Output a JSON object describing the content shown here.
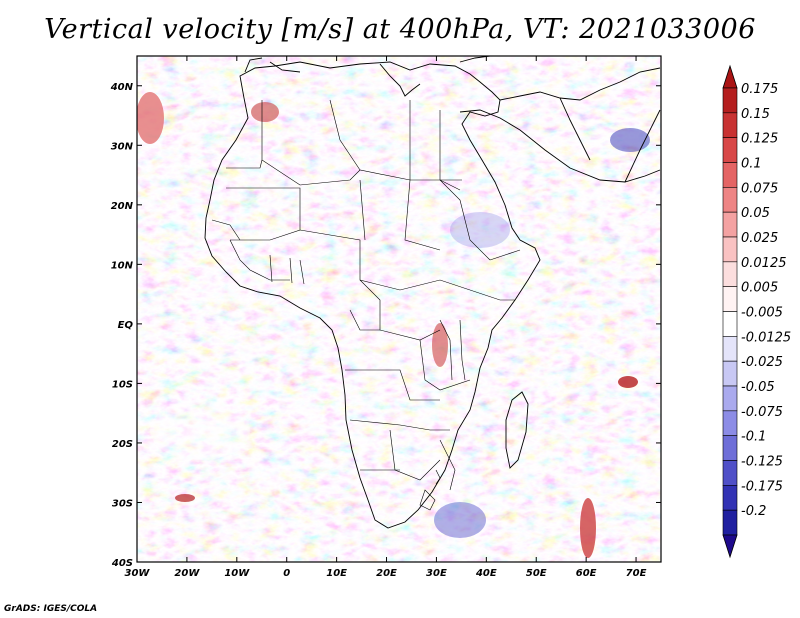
{
  "title": "Vertical velocity [m/s] at 400hPa, VT: 2021033006",
  "credit": "GrADS: IGES/COLA",
  "map": {
    "lon_range": [
      -30,
      75
    ],
    "lat_range": [
      -40,
      45
    ],
    "lon_ticks": [
      {
        "value": -30,
        "label": "30W"
      },
      {
        "value": -20,
        "label": "20W"
      },
      {
        "value": -10,
        "label": "10W"
      },
      {
        "value": 0,
        "label": "0"
      },
      {
        "value": 10,
        "label": "10E"
      },
      {
        "value": 20,
        "label": "20E"
      },
      {
        "value": 30,
        "label": "30E"
      },
      {
        "value": 40,
        "label": "40E"
      },
      {
        "value": 50,
        "label": "50E"
      },
      {
        "value": 60,
        "label": "60E"
      },
      {
        "value": 70,
        "label": "70E"
      }
    ],
    "lat_ticks": [
      {
        "value": 40,
        "label": "40N"
      },
      {
        "value": 30,
        "label": "30N"
      },
      {
        "value": 20,
        "label": "20N"
      },
      {
        "value": 10,
        "label": "10N"
      },
      {
        "value": 0,
        "label": "EQ"
      },
      {
        "value": -10,
        "label": "10S"
      },
      {
        "value": -20,
        "label": "20S"
      },
      {
        "value": -30,
        "label": "30S"
      },
      {
        "value": -40,
        "label": "40S"
      }
    ]
  },
  "colorbar": {
    "items": [
      {
        "label": "0.175",
        "color": "#b41e1e"
      },
      {
        "label": "0.15",
        "color": "#c83232"
      },
      {
        "label": "0.125",
        "color": "#d84848"
      },
      {
        "label": "0.1",
        "color": "#e46464"
      },
      {
        "label": "0.075",
        "color": "#ee8484"
      },
      {
        "label": "0.05",
        "color": "#f4a2a2"
      },
      {
        "label": "0.025",
        "color": "#f9c2c2"
      },
      {
        "label": "0.0125",
        "color": "#fcdede"
      },
      {
        "label": "0.005",
        "color": "#fff3f3"
      },
      {
        "label": "-0.005",
        "color": "#ffffff"
      },
      {
        "label": "-0.0125",
        "color": "#e4e4fa"
      },
      {
        "label": "-0.025",
        "color": "#c8c8f4"
      },
      {
        "label": "-0.05",
        "color": "#aaaaee"
      },
      {
        "label": "-0.075",
        "color": "#8c8ce6"
      },
      {
        "label": "-0.1",
        "color": "#6e6ed8"
      },
      {
        "label": "-0.125",
        "color": "#5050c8"
      },
      {
        "label": "-0.175",
        "color": "#3232b4"
      },
      {
        "label": "-0.2",
        "color": "#2020a0"
      }
    ],
    "top_arrow_color": "#aa1414",
    "bottom_arrow_color": "#1e0a8c"
  }
}
